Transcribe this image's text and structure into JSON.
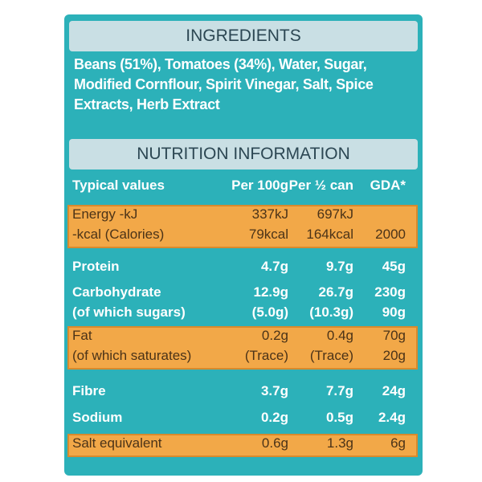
{
  "ingredients": {
    "title": "INGREDIENTS",
    "lines": [
      "Beans (51%), Tomatoes (34%), Water, Sugar,",
      "Modified Cornflour, Spirit Vinegar, Salt, Spice",
      "Extracts, Herb Extract"
    ]
  },
  "nutrition": {
    "title": "NUTRITION INFORMATION",
    "header": [
      "Typical values",
      "Per 100g",
      "Per ½ can",
      "GDA*"
    ],
    "rows": [
      {
        "highlight": true,
        "lines": [
          [
            "Energy -kJ",
            "337kJ",
            "697kJ",
            null
          ],
          [
            "-kcal (Calories)",
            "79kcal",
            "164kcal",
            "2000"
          ]
        ]
      },
      {
        "highlight": false,
        "lines": [
          [
            "Protein",
            "4.7g",
            "9.7g",
            "45g"
          ]
        ]
      },
      {
        "highlight": false,
        "lines": [
          [
            "Carbohydrate",
            "12.9g",
            "26.7g",
            "230g"
          ],
          [
            "(of which sugars)",
            "(5.0g)",
            "(10.3g)",
            "90g"
          ]
        ]
      },
      {
        "highlight": true,
        "lines": [
          [
            "Fat",
            "0.2g",
            "0.4g",
            "70g"
          ],
          [
            "(of which saturates)",
            "(Trace)",
            "(Trace)",
            "20g"
          ]
        ]
      },
      {
        "highlight": false,
        "lines": [
          [
            "Fibre",
            "3.7g",
            "7.7g",
            "24g"
          ]
        ]
      },
      {
        "highlight": false,
        "lines": [
          [
            "Sodium",
            "0.2g",
            "0.5g",
            "2.4g"
          ]
        ]
      },
      {
        "highlight": true,
        "lines": [
          [
            "Salt equivalent",
            "0.6g",
            "1.3g",
            "6g"
          ]
        ]
      }
    ]
  }
}
